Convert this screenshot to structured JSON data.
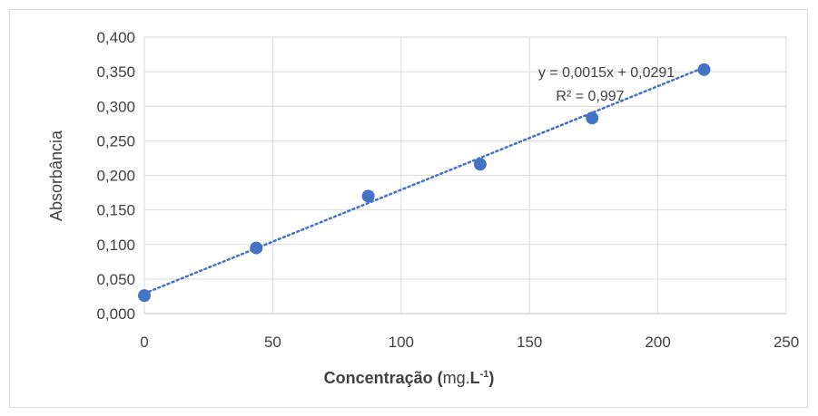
{
  "chart_data": {
    "type": "scatter",
    "ylabel": "Absorbância",
    "xlabel": {
      "part1": "Concentração (",
      "part2": "mg.",
      "part3": "L",
      "sup": "-1",
      "part4": ")"
    },
    "xlim": [
      0,
      250
    ],
    "ylim": [
      0,
      0.4
    ],
    "x_ticks": [
      "0",
      "50",
      "100",
      "150",
      "200",
      "250"
    ],
    "y_ticks": [
      "0,000",
      "0,050",
      "0,100",
      "0,150",
      "0,200",
      "0,250",
      "0,300",
      "0,350",
      "0,400"
    ],
    "grid": true,
    "series": [
      {
        "x": [
          0,
          43.6,
          87.2,
          130.8,
          174.4,
          218
        ],
        "y": [
          0.026,
          0.095,
          0.17,
          0.216,
          0.283,
          0.353
        ]
      }
    ],
    "trendline": {
      "slope": 0.0015,
      "intercept": 0.0291,
      "x_range": [
        0,
        218
      ],
      "equation": "y = 0,0015x + 0,0291",
      "r2": "R² = 0,997"
    },
    "colors": {
      "marker": "#4472c4",
      "trendline": "#4472c4",
      "grid": "#d9d9d9"
    }
  }
}
